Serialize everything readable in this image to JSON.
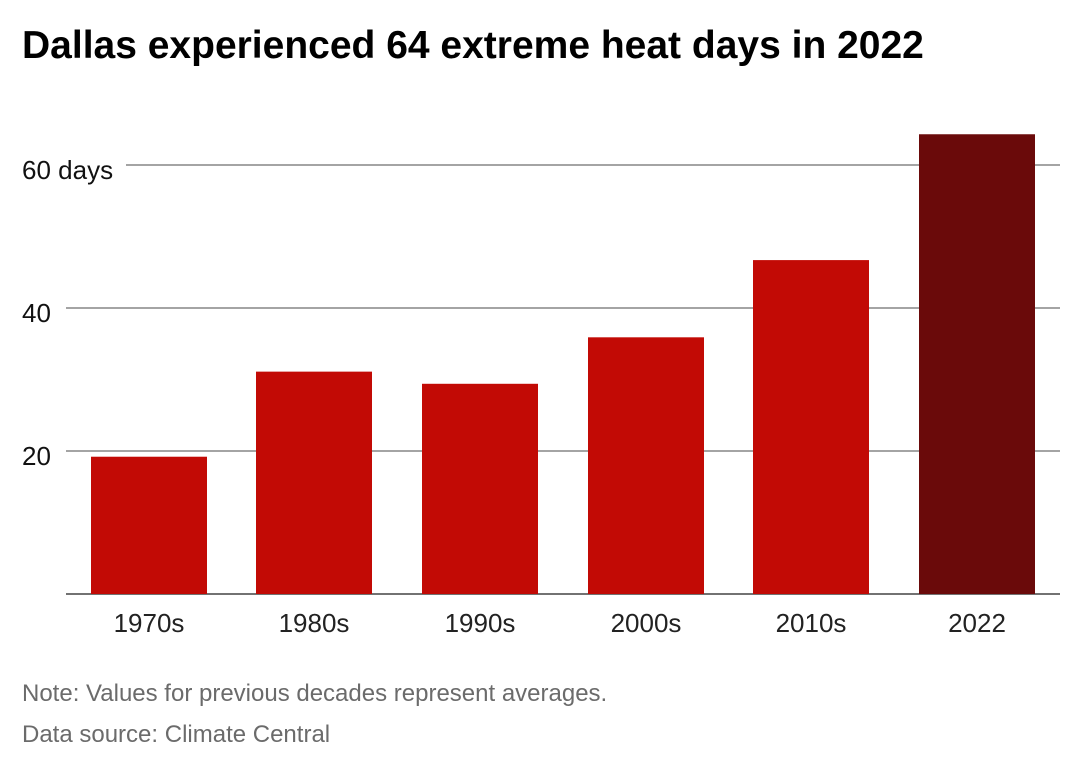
{
  "title": "Dallas experienced 64 extreme heat days in 2022",
  "chart_data": {
    "type": "bar",
    "categories": [
      "1970s",
      "1980s",
      "1990s",
      "2000s",
      "2010s",
      "2022"
    ],
    "values": [
      19.2,
      31.1,
      29.4,
      35.9,
      46.7,
      64.3
    ],
    "ylim": [
      0,
      72
    ],
    "yticks": [
      {
        "value": 20,
        "label": "20"
      },
      {
        "value": 40,
        "label": "40"
      },
      {
        "value": 60,
        "label": "60 days"
      }
    ],
    "grid": true,
    "colors": {
      "default": "#c20a05",
      "highlight": "#6a0a0a",
      "grid": "#6e6e6e",
      "axis": "#444444"
    },
    "highlight_category": "2022"
  },
  "notes": {
    "note": "Note: Values for previous decades represent averages.",
    "source": "Data source: Climate Central"
  }
}
